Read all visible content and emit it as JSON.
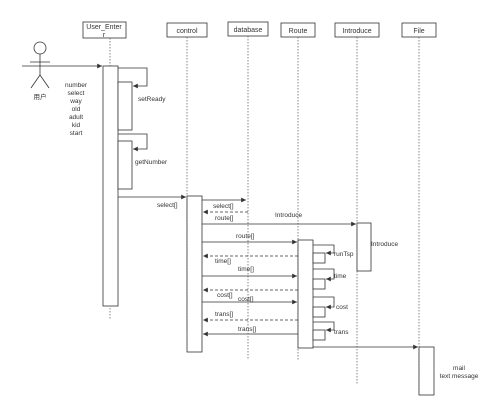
{
  "participants": {
    "actor_label": "用户",
    "user_enter": "User_Enter",
    "control": "control",
    "database": "database",
    "route": "Route",
    "introduce": "Introduce",
    "file": "File"
  },
  "notes": {
    "user_params": [
      "number",
      "select",
      "way",
      "old",
      "adult",
      "kid",
      "start"
    ],
    "file_output": [
      "mail",
      "text message"
    ]
  },
  "messages": {
    "setReady": "setReady",
    "getNumber": "getNumber",
    "select_to_control": "select[]",
    "select_to_db": "select[]",
    "route_return": "route[]",
    "introduce_call": "Introduce",
    "route_to_route": "route[]",
    "runTsp": "runTsp",
    "time_return": "time[]",
    "time_to_control": "time[]",
    "time_self": "time",
    "cost_return": "cost[]",
    "cost_to_control": "cost[]",
    "cost_self": "cost",
    "trans_return": "trans[]",
    "trans_to_control": "trans[]",
    "trans_self": "trans",
    "introduce_activation": "Introduce"
  }
}
